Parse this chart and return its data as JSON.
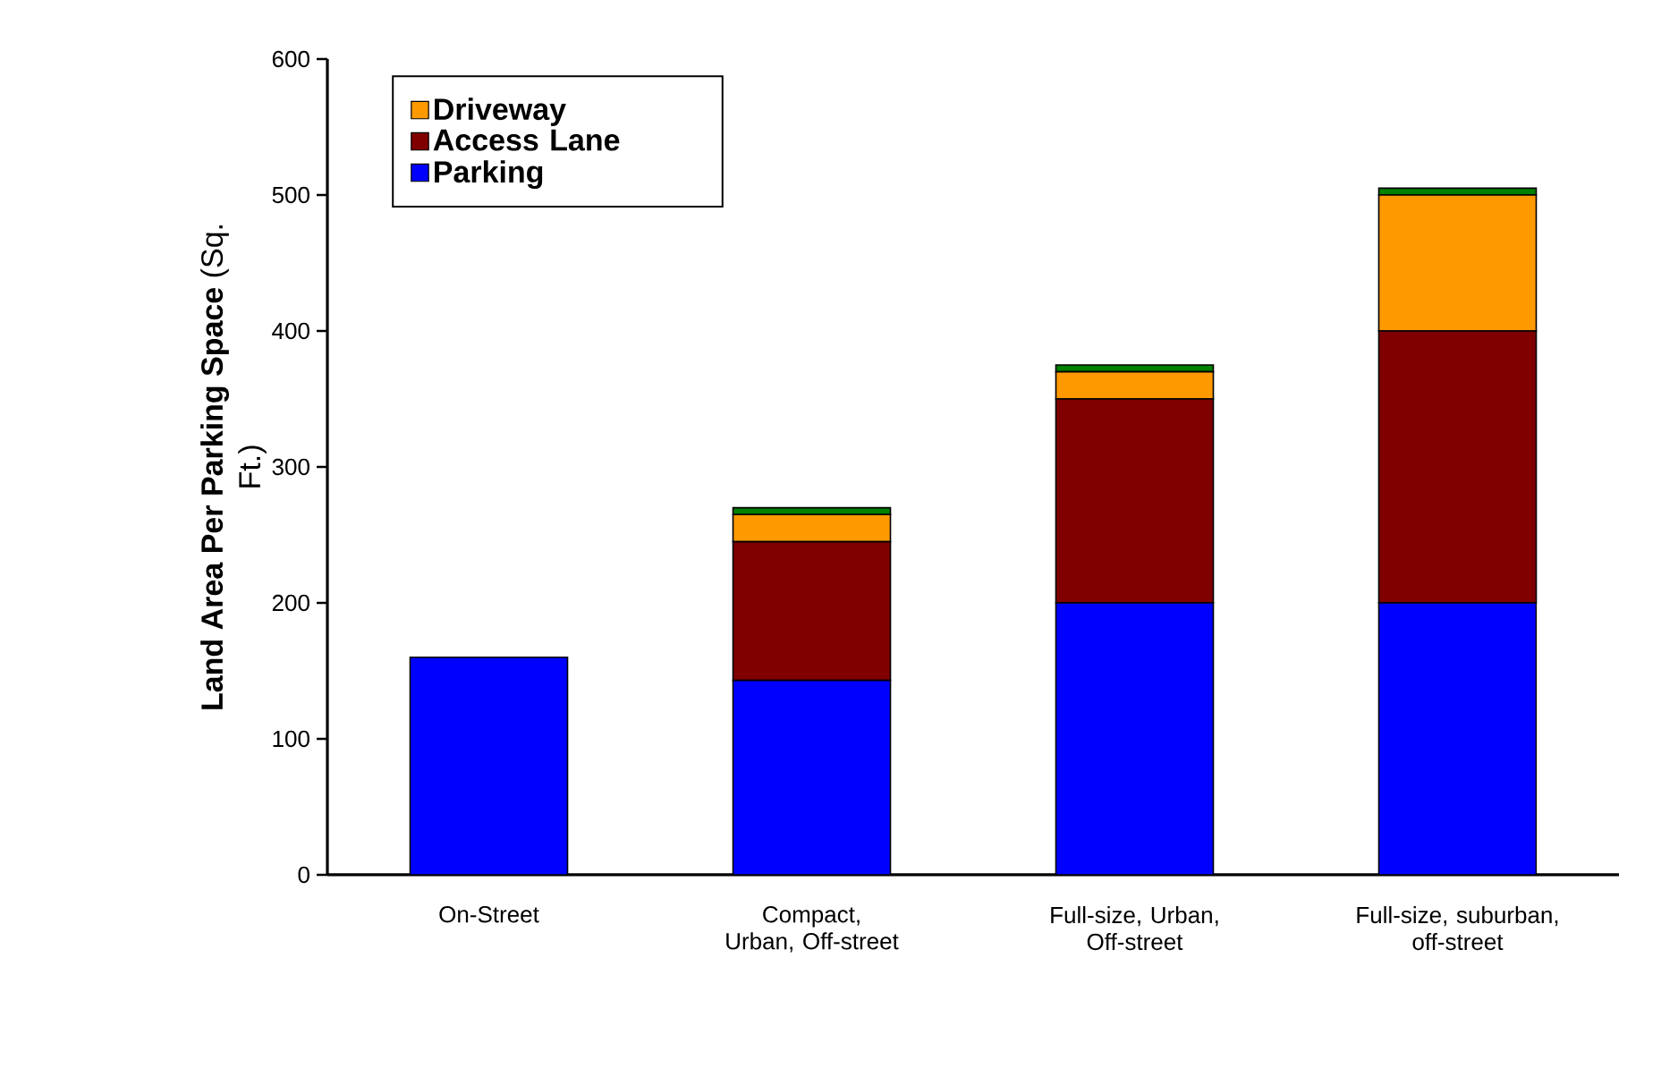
{
  "chart_data": {
    "type": "bar",
    "stacked": true,
    "ylabel": "**Land Area Per Parking Space** (Sq. Ft.)",
    "categories": [
      "On-Street",
      "Compact, Urban, Off-street",
      "Full-size, Urban, Off-street",
      "Full-size, suburban, off-street"
    ],
    "series": [
      {
        "name": "Parking",
        "color": "#0000ff",
        "values": [
          160,
          143,
          200,
          200
        ]
      },
      {
        "name": "Access Lane",
        "color": "#800000",
        "values": [
          0,
          102,
          150,
          200
        ]
      },
      {
        "name": "Driveway",
        "color": "#ff9900",
        "values": [
          0,
          20,
          20,
          100
        ]
      },
      {
        "color": "#008000",
        "values": [
          0,
          5,
          5,
          5
        ]
      }
    ],
    "ylim": [
      0,
      600
    ],
    "yticks": [
      0,
      100,
      200,
      300,
      400,
      500,
      600
    ],
    "legend": "top left",
    "grid": false
  }
}
